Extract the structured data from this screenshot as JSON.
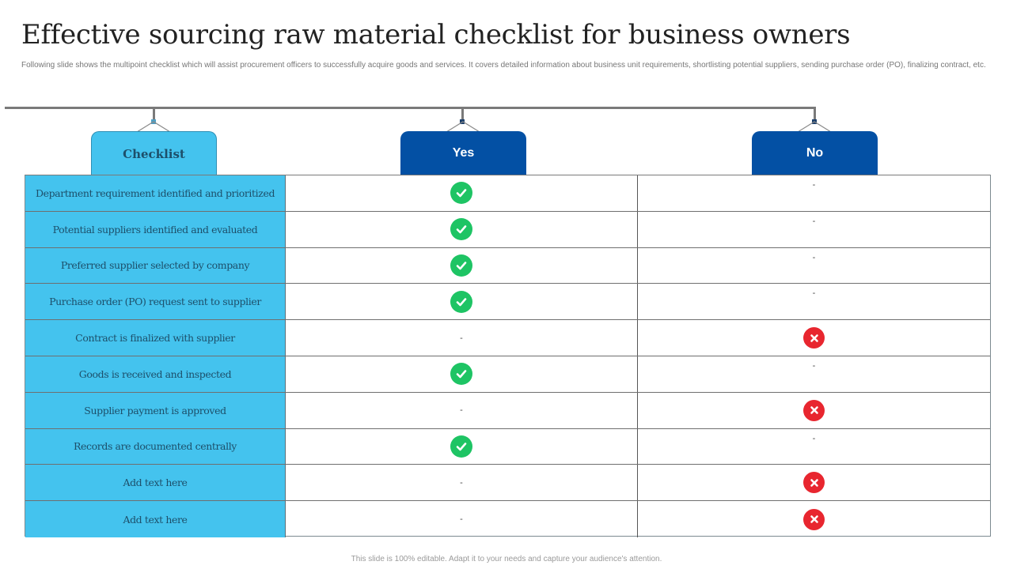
{
  "header": {
    "title": "Effective sourcing raw material checklist for business owners",
    "subtitle": "Following slide shows the multipoint checklist which will assist procurement officers to successfully acquire goods and services. It covers detailed information about business unit requirements, shortlisting potential suppliers, sending purchase order (PO), finalizing contract, etc."
  },
  "columns": {
    "checklist": "Checklist",
    "yes": "Yes",
    "no": "No"
  },
  "colors": {
    "checklist_tab": "#44c3ee",
    "yes_no_tab": "#0350a4",
    "check_icon": "#1ec464",
    "cross_icon": "#e8262f"
  },
  "rows": [
    {
      "label": "Department requirement identified and prioritized",
      "yes": "check-icon",
      "no": "-"
    },
    {
      "label": "Potential suppliers identified and evaluated",
      "yes": "check-icon",
      "no": "-"
    },
    {
      "label": "Preferred supplier selected by company",
      "yes": "check-icon",
      "no": "-"
    },
    {
      "label": "Purchase order (PO) request sent to supplier",
      "yes": "check-icon",
      "no": "-"
    },
    {
      "label": "Contract is finalized with supplier",
      "yes": "-",
      "no": "cross-icon"
    },
    {
      "label": "Goods is received and inspected",
      "yes": "check-icon",
      "no": "-"
    },
    {
      "label": "Supplier payment is approved",
      "yes": "-",
      "no": "cross-icon"
    },
    {
      "label": "Records are documented centrally",
      "yes": "check-icon",
      "no": "-"
    },
    {
      "label": "Add text here",
      "yes": "-",
      "no": "cross-icon"
    },
    {
      "label": "Add text here",
      "yes": "-",
      "no": "cross-icon"
    }
  ],
  "footer": {
    "text": "This slide is 100% editable. Adapt it to your needs and capture your audience's attention."
  }
}
